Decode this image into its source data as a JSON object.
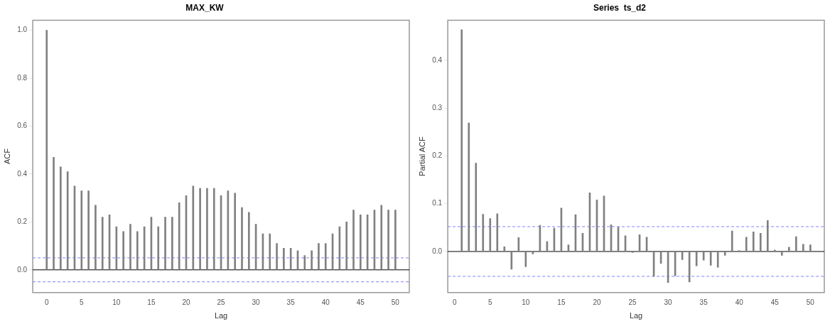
{
  "chart_data": [
    {
      "type": "bar",
      "title": "MAX_KW",
      "xlabel": "Lag",
      "ylabel": "ACF",
      "color": "#808080",
      "x": [
        0,
        1,
        2,
        3,
        4,
        5,
        6,
        7,
        8,
        9,
        10,
        11,
        12,
        13,
        14,
        15,
        16,
        17,
        18,
        19,
        20,
        21,
        22,
        23,
        24,
        25,
        26,
        27,
        28,
        29,
        30,
        31,
        32,
        33,
        34,
        35,
        36,
        37,
        38,
        39,
        40,
        41,
        42,
        43,
        44,
        45,
        46,
        47,
        48,
        49,
        50
      ],
      "values": [
        1.0,
        0.47,
        0.43,
        0.41,
        0.35,
        0.33,
        0.33,
        0.27,
        0.22,
        0.23,
        0.18,
        0.16,
        0.19,
        0.16,
        0.18,
        0.22,
        0.18,
        0.22,
        0.22,
        0.28,
        0.31,
        0.35,
        0.34,
        0.34,
        0.34,
        0.31,
        0.33,
        0.32,
        0.26,
        0.24,
        0.19,
        0.15,
        0.15,
        0.11,
        0.09,
        0.09,
        0.08,
        0.06,
        0.08,
        0.11,
        0.11,
        0.15,
        0.18,
        0.2,
        0.25,
        0.23,
        0.23,
        0.25,
        0.27,
        0.25,
        0.25
      ],
      "xlim": [
        -2,
        52
      ],
      "xticks": [
        0,
        5,
        10,
        15,
        20,
        25,
        30,
        35,
        40,
        45,
        50
      ],
      "ylim": [
        -0.095,
        1.042
      ],
      "yticks": [
        {
          "value": 0,
          "label": "0.0"
        },
        {
          "value": 0.2,
          "label": "0.2"
        },
        {
          "value": 0.4,
          "label": "0.4"
        },
        {
          "value": 0.6,
          "label": "0.6"
        },
        {
          "value": 0.8,
          "label": "0.8"
        },
        {
          "value": 1,
          "label": "1.0"
        }
      ],
      "ref_lines": [
        {
          "axis": "y",
          "value": 0,
          "color": "#000000",
          "line_style": "solid"
        },
        {
          "axis": "y",
          "value": 0.05,
          "color": "#8080ff",
          "line_style": "dashed"
        },
        {
          "axis": "y",
          "value": -0.05,
          "color": "#8080ff",
          "line_style": "dashed"
        }
      ]
    },
    {
      "type": "bar",
      "title": "Series  ts_d2",
      "xlabel": "Lag",
      "ylabel": "Partial ACF",
      "color": "#808080",
      "x": [
        1,
        2,
        3,
        4,
        5,
        6,
        7,
        8,
        9,
        10,
        11,
        12,
        13,
        14,
        15,
        16,
        17,
        18,
        19,
        20,
        21,
        22,
        23,
        24,
        25,
        26,
        27,
        28,
        29,
        30,
        31,
        32,
        33,
        34,
        35,
        36,
        37,
        38,
        39,
        40,
        41,
        42,
        43,
        44,
        45,
        46,
        47,
        48,
        49,
        50
      ],
      "values": [
        0.464,
        0.269,
        0.185,
        0.078,
        0.069,
        0.079,
        0.01,
        -0.037,
        0.029,
        -0.032,
        -0.005,
        0.055,
        0.021,
        0.049,
        0.091,
        0.014,
        0.077,
        0.038,
        0.123,
        0.108,
        0.116,
        0.056,
        0.051,
        0.033,
        -0.002,
        0.035,
        0.03,
        -0.052,
        -0.025,
        -0.065,
        -0.051,
        -0.017,
        -0.064,
        -0.03,
        -0.018,
        -0.029,
        -0.033,
        -0.008,
        0.043,
        0.002,
        0.03,
        0.041,
        0.038,
        0.065,
        0.003,
        -0.008,
        0.009,
        0.031,
        0.015,
        0.014
      ],
      "xlim": [
        -0.96,
        51.96
      ],
      "xticks": [
        0,
        5,
        10,
        15,
        20,
        25,
        30,
        35,
        40,
        45,
        50
      ],
      "ylim": [
        -0.086,
        0.484
      ],
      "yticks": [
        {
          "value": 0,
          "label": "0.0"
        },
        {
          "value": 0.1,
          "label": "0.1"
        },
        {
          "value": 0.2,
          "label": "0.2"
        },
        {
          "value": 0.3,
          "label": "0.3"
        },
        {
          "value": 0.4,
          "label": "0.4"
        }
      ],
      "ref_lines": [
        {
          "axis": "y",
          "value": 0,
          "color": "#000000",
          "line_style": "solid"
        },
        {
          "axis": "y",
          "value": 0.052,
          "color": "#8080ff",
          "line_style": "dashed"
        },
        {
          "axis": "y",
          "value": -0.052,
          "color": "#8080ff",
          "line_style": "dashed"
        }
      ]
    }
  ]
}
